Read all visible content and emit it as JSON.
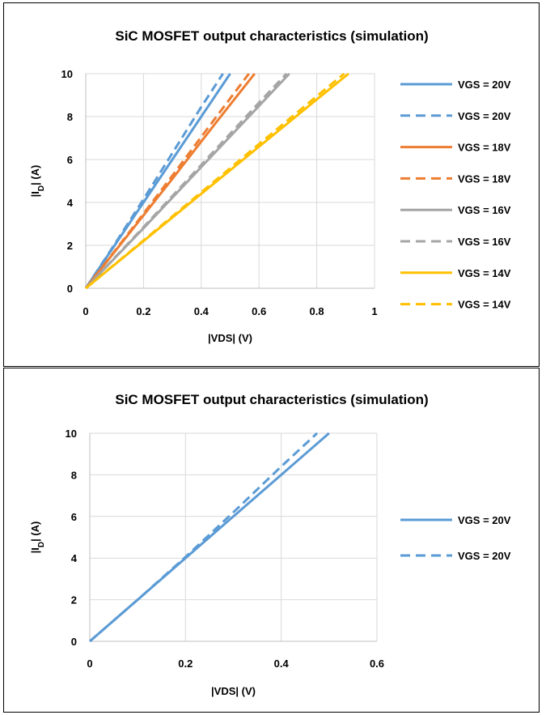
{
  "chart_data": [
    {
      "type": "line",
      "title": "SiC MOSFET output characteristics (simulation)",
      "xlabel": "|VDS| (V)",
      "ylabel_main": "|I",
      "ylabel_sub": "D",
      "ylabel_tail": "| (A)",
      "xlim": [
        0,
        1
      ],
      "ylim": [
        0,
        10
      ],
      "xticks": [
        "0",
        "0.2",
        "0.4",
        "0.6",
        "0.8",
        "1"
      ],
      "yticks": [
        "0",
        "2",
        "4",
        "6",
        "8",
        "10"
      ],
      "grid": true,
      "legend_position": "right",
      "series": [
        {
          "name": "VGS = 20V",
          "color": "#5b9bd5",
          "dash": false,
          "x": [
            0,
            0.1,
            0.2,
            0.3,
            0.4,
            0.5
          ],
          "y": [
            0,
            2.0,
            4.0,
            6.0,
            8.0,
            10.0
          ]
        },
        {
          "name": "VGS = 20V",
          "color": "#5b9bd5",
          "dash": true,
          "x": [
            0,
            0.1,
            0.2,
            0.3,
            0.4,
            0.475
          ],
          "y": [
            0,
            2.05,
            4.15,
            6.3,
            8.45,
            10.0
          ]
        },
        {
          "name": "VGS = 18V",
          "color": "#ed7d31",
          "dash": false,
          "x": [
            0,
            0.15,
            0.3,
            0.45,
            0.585
          ],
          "y": [
            0,
            2.55,
            5.1,
            7.7,
            10.0
          ]
        },
        {
          "name": "VGS = 18V",
          "color": "#ed7d31",
          "dash": true,
          "x": [
            0,
            0.15,
            0.3,
            0.45,
            0.565
          ],
          "y": [
            0,
            2.6,
            5.25,
            7.95,
            10.0
          ]
        },
        {
          "name": "VGS = 16V",
          "color": "#a5a5a5",
          "dash": false,
          "x": [
            0,
            0.2,
            0.4,
            0.6,
            0.705
          ],
          "y": [
            0,
            2.8,
            5.65,
            8.5,
            10.0
          ]
        },
        {
          "name": "VGS = 16V",
          "color": "#a5a5a5",
          "dash": true,
          "x": [
            0,
            0.2,
            0.4,
            0.6,
            0.695
          ],
          "y": [
            0,
            2.85,
            5.75,
            8.65,
            10.0
          ]
        },
        {
          "name": "VGS = 14V",
          "color": "#ffc000",
          "dash": false,
          "x": [
            0,
            0.2,
            0.4,
            0.6,
            0.8,
            0.91
          ],
          "y": [
            0,
            2.2,
            4.4,
            6.6,
            8.8,
            10.0
          ]
        },
        {
          "name": "VGS = 14V",
          "color": "#ffc000",
          "dash": true,
          "x": [
            0,
            0.2,
            0.4,
            0.6,
            0.8,
            0.895
          ],
          "y": [
            0,
            2.23,
            4.47,
            6.72,
            8.95,
            10.0
          ]
        }
      ]
    },
    {
      "type": "line",
      "title": "SiC MOSFET output characteristics (simulation)",
      "xlabel": "|VDS| (V)",
      "ylabel_main": "|I",
      "ylabel_sub": "D",
      "ylabel_tail": "| (A)",
      "xlim": [
        0,
        0.6
      ],
      "ylim": [
        0,
        10
      ],
      "xticks": [
        "0",
        "0.2",
        "0.4",
        "0.6"
      ],
      "yticks": [
        "0",
        "2",
        "4",
        "6",
        "8",
        "10"
      ],
      "grid": true,
      "legend_position": "right",
      "series": [
        {
          "name": "VGS = 20V",
          "color": "#5b9bd5",
          "dash": false,
          "x": [
            0,
            0.1,
            0.2,
            0.3,
            0.4,
            0.5
          ],
          "y": [
            0,
            2.0,
            4.0,
            6.0,
            8.0,
            10.0
          ]
        },
        {
          "name": "VGS = 20V",
          "color": "#5b9bd5",
          "dash": true,
          "x": [
            0,
            0.1,
            0.2,
            0.3,
            0.4,
            0.475
          ],
          "y": [
            0,
            2.0,
            4.05,
            6.2,
            8.4,
            10.0
          ]
        }
      ]
    }
  ]
}
